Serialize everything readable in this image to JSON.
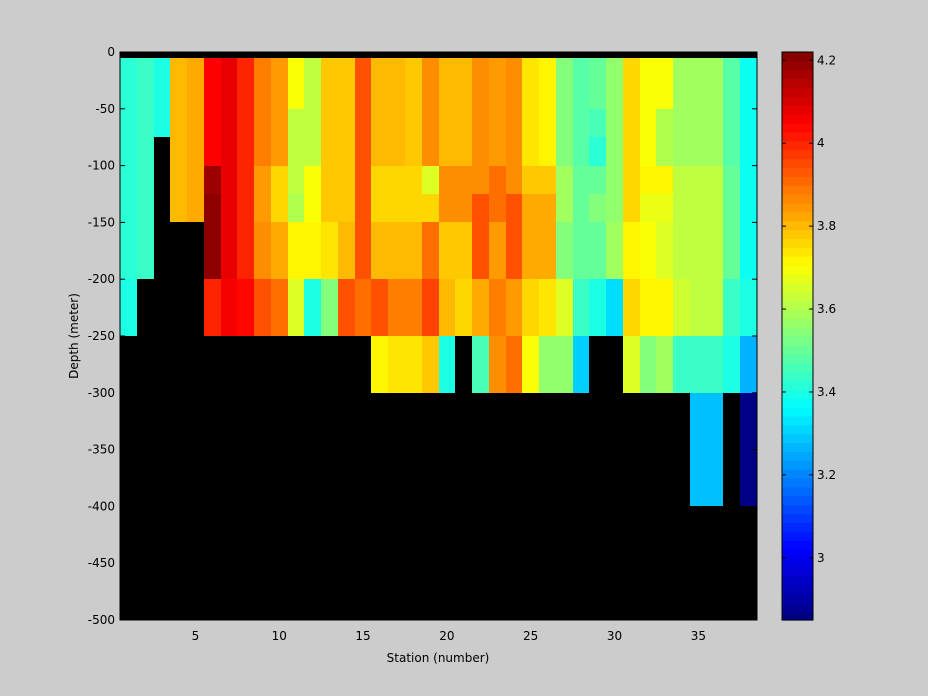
{
  "chart_data": {
    "type": "heatmap",
    "title": "",
    "xlabel": "Station (number)",
    "ylabel": "Depth (meter)",
    "xlim": [
      1,
      38
    ],
    "ylim": [
      -500,
      0
    ],
    "x_ticks": [
      5,
      10,
      15,
      20,
      25,
      30,
      35
    ],
    "y_ticks": [
      0,
      -50,
      -100,
      -150,
      -200,
      -250,
      -300,
      -350,
      -400,
      -450,
      -500
    ],
    "grid": false,
    "background_color": "#000000",
    "stations": [
      1,
      2,
      3,
      4,
      5,
      6,
      7,
      8,
      9,
      10,
      11,
      12,
      13,
      14,
      15,
      16,
      17,
      18,
      19,
      20,
      21,
      22,
      23,
      24,
      25,
      26,
      27,
      28,
      29,
      30,
      31,
      32,
      33,
      34,
      35,
      36,
      37,
      38
    ],
    "depth_bins": [
      [
        0,
        -50
      ],
      [
        -50,
        -75
      ],
      [
        -75,
        -100
      ],
      [
        -100,
        -125
      ],
      [
        -125,
        -150
      ],
      [
        -150,
        -200
      ],
      [
        -200,
        -250
      ],
      [
        -250,
        -300
      ],
      [
        -300,
        -400
      ]
    ],
    "values": [
      [
        3.42,
        3.44,
        3.4,
        3.8,
        3.82,
        4.05,
        4.08,
        4.0,
        3.88,
        3.84,
        3.7,
        3.62,
        3.78,
        3.78,
        3.94,
        3.8,
        3.8,
        3.78,
        3.86,
        3.8,
        3.8,
        3.86,
        3.84,
        3.86,
        3.74,
        3.72,
        3.54,
        3.48,
        3.5,
        3.56,
        3.76,
        3.7,
        3.7,
        3.58,
        3.58,
        3.58,
        3.48,
        3.38
      ],
      [
        3.42,
        3.44,
        3.4,
        3.8,
        3.82,
        4.05,
        4.08,
        4.0,
        3.88,
        3.84,
        3.62,
        3.62,
        3.78,
        3.78,
        3.94,
        3.8,
        3.8,
        3.78,
        3.86,
        3.8,
        3.8,
        3.86,
        3.84,
        3.86,
        3.74,
        3.72,
        3.54,
        3.48,
        3.46,
        3.56,
        3.76,
        3.7,
        3.6,
        3.58,
        3.58,
        3.58,
        3.48,
        3.38
      ],
      [
        3.42,
        3.44,
        null,
        3.8,
        3.82,
        4.05,
        4.08,
        4.0,
        3.88,
        3.84,
        3.62,
        3.62,
        3.78,
        3.78,
        3.94,
        3.8,
        3.8,
        3.78,
        3.86,
        3.8,
        3.8,
        3.86,
        3.84,
        3.86,
        3.74,
        3.72,
        3.54,
        3.48,
        3.42,
        3.56,
        3.76,
        3.7,
        3.6,
        3.58,
        3.58,
        3.58,
        3.48,
        3.38
      ],
      [
        3.42,
        3.44,
        null,
        3.8,
        3.82,
        4.18,
        4.08,
        4.0,
        3.84,
        3.76,
        3.62,
        3.7,
        3.78,
        3.78,
        3.94,
        3.76,
        3.76,
        3.76,
        3.66,
        3.86,
        3.86,
        3.86,
        3.9,
        3.86,
        3.78,
        3.78,
        3.58,
        3.5,
        3.5,
        3.56,
        3.76,
        3.72,
        3.72,
        3.62,
        3.62,
        3.62,
        3.5,
        3.38
      ],
      [
        3.42,
        3.44,
        null,
        3.8,
        3.82,
        4.2,
        4.08,
        4.0,
        3.84,
        3.76,
        3.6,
        3.7,
        3.78,
        3.78,
        3.94,
        3.76,
        3.76,
        3.76,
        3.76,
        3.86,
        3.86,
        3.94,
        3.9,
        3.94,
        3.82,
        3.82,
        3.58,
        3.5,
        3.54,
        3.56,
        3.76,
        3.68,
        3.68,
        3.62,
        3.62,
        3.62,
        3.5,
        3.38
      ],
      [
        3.42,
        3.44,
        null,
        null,
        null,
        4.2,
        4.08,
        4.0,
        3.86,
        3.82,
        3.72,
        3.72,
        3.74,
        3.8,
        3.94,
        3.8,
        3.8,
        3.8,
        3.9,
        3.78,
        3.78,
        3.94,
        3.84,
        3.94,
        3.82,
        3.82,
        3.54,
        3.5,
        3.5,
        3.58,
        3.72,
        3.7,
        3.66,
        3.62,
        3.62,
        3.62,
        3.5,
        3.38
      ],
      [
        3.4,
        null,
        null,
        null,
        null,
        4.0,
        4.06,
        4.04,
        3.94,
        3.9,
        3.66,
        3.4,
        3.54,
        3.94,
        3.9,
        3.94,
        3.88,
        3.88,
        3.96,
        3.8,
        3.76,
        3.82,
        3.88,
        3.84,
        3.76,
        3.74,
        3.66,
        3.44,
        3.4,
        3.32,
        3.76,
        3.72,
        3.72,
        3.64,
        3.62,
        3.62,
        3.44,
        3.4
      ],
      [
        null,
        null,
        null,
        null,
        null,
        null,
        null,
        null,
        null,
        null,
        null,
        null,
        null,
        null,
        null,
        3.72,
        3.74,
        3.74,
        3.78,
        3.4,
        null,
        3.46,
        3.86,
        3.9,
        3.7,
        3.56,
        3.56,
        3.3,
        null,
        null,
        3.66,
        3.54,
        3.58,
        3.44,
        3.44,
        3.44,
        3.4,
        3.26
      ],
      [
        null,
        null,
        null,
        null,
        null,
        null,
        null,
        null,
        null,
        null,
        null,
        null,
        null,
        null,
        null,
        null,
        null,
        null,
        null,
        null,
        null,
        null,
        null,
        null,
        null,
        null,
        null,
        null,
        null,
        null,
        null,
        null,
        null,
        null,
        3.28,
        3.28,
        null,
        2.86
      ]
    ],
    "colorbar": {
      "min": 2.85,
      "max": 4.22,
      "ticks": [
        3,
        3.2,
        3.4,
        3.6,
        3.8,
        4,
        4.2
      ],
      "colormap": "jet"
    }
  }
}
